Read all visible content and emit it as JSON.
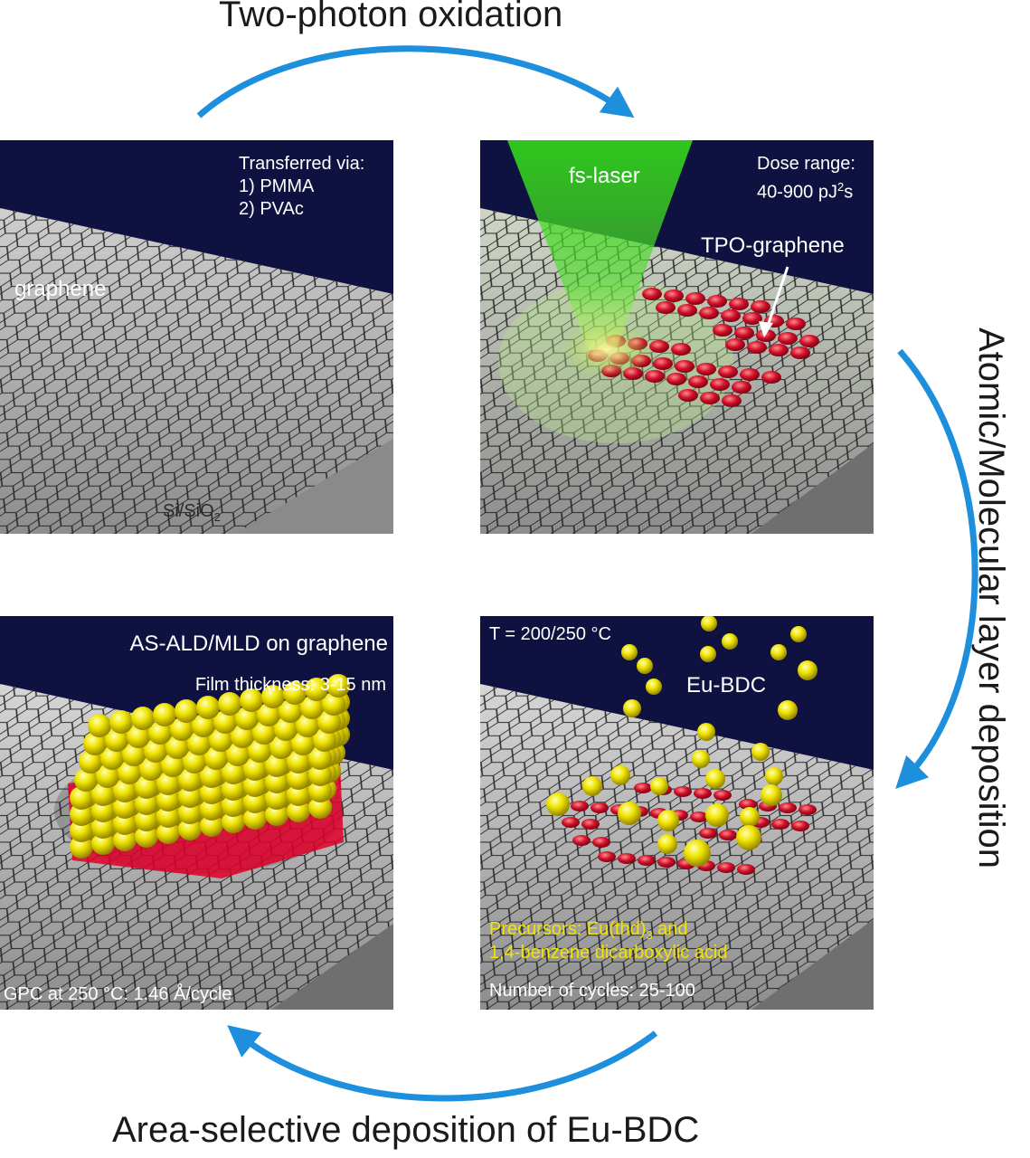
{
  "steps": {
    "top": "Two-photon oxidation",
    "right": "Atomic/Molecular layer deposition",
    "bottom": "Area-selective deposition of Eu-BDC"
  },
  "panel1": {
    "transfer_title": "Transferred via:",
    "transfer_1": "1) PMMA",
    "transfer_2": "2) PVAc",
    "graphene_label": "graphene",
    "substrate_label_main": "Si/SiO",
    "substrate_label_sub": "2"
  },
  "panel2": {
    "laser_label": "fs-laser",
    "dose_title": "Dose range:",
    "dose_value_main": "40-900 pJ",
    "dose_value_sup": "2",
    "dose_value_tail": "s",
    "tpo_label": "TPO-graphene"
  },
  "panel3": {
    "title": "AS-ALD/MLD on graphene",
    "thickness": "Film thickness: 3-15 nm",
    "gpc": "GPC at 250 °C: 1.46 Å/cycle"
  },
  "panel4": {
    "temperature": "T = 200/250 °C",
    "eu_label": "Eu-BDC",
    "precursors_main": "Precursors: Eu(thd)",
    "precursors_sub": "3",
    "precursors_tail": " and",
    "precursors_line2": "1,4-benzene dicarboxylic acid",
    "cycles": "Number of cycles: 25-100"
  },
  "colors": {
    "arrow": "#1d8fdc",
    "panel_bg": "#0f1240",
    "substrate": "#a9a9a9",
    "tpo_red": "#d0102a",
    "sphere_yellow": "#f0e400",
    "laser_green": "#4fe02a"
  }
}
